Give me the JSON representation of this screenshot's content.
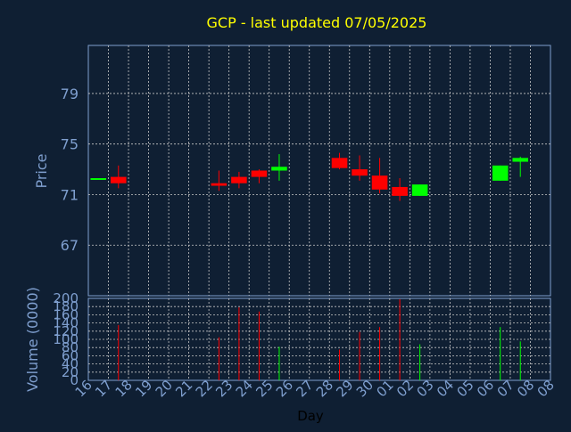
{
  "title": "GCP - last updated 07/05/2025",
  "colors": {
    "background": "#0f1f33",
    "title": "#ffff00",
    "axis_text": "#7f9fcf",
    "grid": "#c8c8c8",
    "up": "#00ff00",
    "down": "#ff0000"
  },
  "chart_data": [
    {
      "type": "candlestick",
      "title": "GCP - last updated 07/05/2025",
      "ylabel": "Price",
      "ylim": [
        67,
        71,
        75,
        79
      ],
      "y_range": [
        63.0,
        82.8
      ],
      "yticks": [
        67,
        71,
        75,
        79
      ],
      "grid": true,
      "candles": [
        {
          "x": "16",
          "open": 72.3,
          "close": 72.3,
          "high": 72.3,
          "low": 72.3
        },
        {
          "x": "17",
          "open": 72.4,
          "close": 71.9,
          "high": 73.3,
          "low": 71.5
        },
        {
          "x": "22",
          "open": 71.9,
          "close": 71.7,
          "high": 72.9,
          "low": 71.3
        },
        {
          "x": "23",
          "open": 72.4,
          "close": 71.9,
          "high": 72.8,
          "low": 71.5
        },
        {
          "x": "24",
          "open": 72.9,
          "close": 72.4,
          "high": 73.0,
          "low": 71.9
        },
        {
          "x": "25",
          "open": 72.9,
          "close": 73.2,
          "high": 74.2,
          "low": 72.1
        },
        {
          "x": "28",
          "open": 73.9,
          "close": 73.1,
          "high": 74.3,
          "low": 73.0
        },
        {
          "x": "29",
          "open": 73.0,
          "close": 72.5,
          "high": 74.1,
          "low": 72.1
        },
        {
          "x": "30",
          "open": 72.5,
          "close": 71.4,
          "high": 73.9,
          "low": 71.1
        },
        {
          "x": "01",
          "open": 71.6,
          "close": 70.9,
          "high": 72.3,
          "low": 70.5
        },
        {
          "x": "02",
          "open": 70.9,
          "close": 71.8,
          "high": 71.8,
          "low": 70.9
        },
        {
          "x": "06",
          "open": 72.1,
          "close": 73.3,
          "high": 73.3,
          "low": 72.1
        },
        {
          "x": "07",
          "open": 73.6,
          "close": 73.9,
          "high": 74.0,
          "low": 72.4
        }
      ]
    },
    {
      "type": "bar",
      "xlabel": "Day",
      "ylabel": "Volume (0000)",
      "ylim": [
        0,
        200
      ],
      "yticks": [
        0,
        20,
        40,
        60,
        80,
        100,
        120,
        140,
        160,
        180,
        200
      ],
      "grid": true,
      "categories": [
        "16",
        "17",
        "18",
        "19",
        "20",
        "21",
        "22",
        "23",
        "24",
        "25",
        "26",
        "27",
        "28",
        "29",
        "30",
        "01",
        "02",
        "03",
        "04",
        "05",
        "06",
        "07",
        "08"
      ],
      "values": [
        0,
        135,
        0,
        0,
        0,
        0,
        105,
        178,
        168,
        82,
        0,
        0,
        75,
        118,
        130,
        198,
        88,
        0,
        0,
        0,
        130,
        95,
        0
      ],
      "colors": [
        "",
        "down",
        "",
        "",
        "",
        "",
        "down",
        "down",
        "down",
        "up",
        "",
        "",
        "down",
        "down",
        "down",
        "down",
        "up",
        "",
        "",
        "",
        "up",
        "up",
        ""
      ]
    }
  ]
}
